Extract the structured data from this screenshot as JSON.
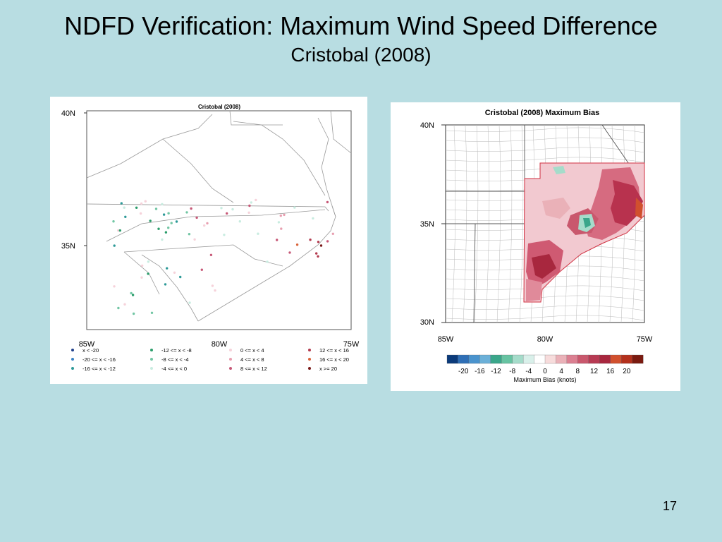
{
  "slide": {
    "title": "NDFD Verification:  Maximum Wind Speed Difference",
    "subtitle": "Cristobal (2008)",
    "page_number": "17"
  },
  "left_map": {
    "title": "Cristobal (2008)",
    "lat_labels": [
      "40N",
      "35N"
    ],
    "lon_labels": [
      "85W",
      "80W",
      "75W"
    ],
    "legend": [
      {
        "label": "x < -20",
        "color": "#1f3f8a"
      },
      {
        "label": "-20 <= x < -16",
        "color": "#3a82c4"
      },
      {
        "label": "-16 <= x < -12",
        "color": "#2e9a98"
      },
      {
        "label": "-12 <= x < -8",
        "color": "#2b9d6b"
      },
      {
        "label": "-8 <= x < -4",
        "color": "#72c6a4"
      },
      {
        "label": "-4 <= x < 0",
        "color": "#c8ece0"
      },
      {
        "label": "0 <= x < 4",
        "color": "#f6d2da"
      },
      {
        "label": "4 <= x < 8",
        "color": "#e89fb0"
      },
      {
        "label": "8 <= x < 12",
        "color": "#c75877"
      },
      {
        "label": "12 <= x < 16",
        "color": "#b33a4e"
      },
      {
        "label": "16 <= x < 20",
        "color": "#d9633a"
      },
      {
        "label": "x >= 20",
        "color": "#7a1a1a"
      }
    ]
  },
  "right_map": {
    "title": "Cristobal (2008) Maximum Bias",
    "lat_labels": [
      "40N",
      "35N",
      "30N"
    ],
    "lon_labels": [
      "85W",
      "80W",
      "75W"
    ],
    "colorbar": {
      "colors": [
        "#0b3a7a",
        "#2f6fb6",
        "#4a93cd",
        "#6bb0d8",
        "#3aa68a",
        "#67c3a2",
        "#a5dcca",
        "#d9f0ea",
        "#ffffff",
        "#f7dcdc",
        "#eab1b8",
        "#db7f91",
        "#c9586d",
        "#b73a53",
        "#a8273e",
        "#d1502e",
        "#b3301c",
        "#7a1a10"
      ],
      "tick_labels": [
        "-20",
        "-16",
        "-12",
        "-8",
        "-4",
        "0",
        "4",
        "8",
        "12",
        "16",
        "20"
      ],
      "label": "Maximum Bias (knots)"
    }
  }
}
